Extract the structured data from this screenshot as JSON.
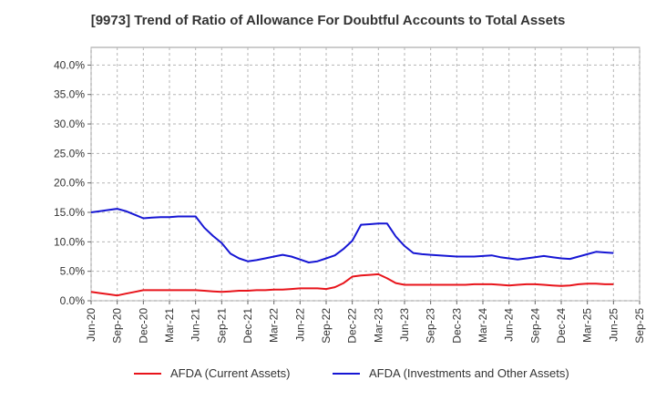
{
  "chart_data": {
    "type": "line",
    "title": "[9973]  Trend of Ratio of Allowance For Doubtful Accounts to Total Assets",
    "xlabel": "",
    "ylabel": "",
    "ylim": [
      0,
      0.43
    ],
    "yticks": [
      0,
      0.05,
      0.1,
      0.15,
      0.2,
      0.25,
      0.3,
      0.35,
      0.4
    ],
    "ytick_labels": [
      "0.0%",
      "5.0%",
      "10.0%",
      "15.0%",
      "20.0%",
      "25.0%",
      "30.0%",
      "35.0%",
      "40.0%"
    ],
    "x_tick_labels": [
      "Jun-20",
      "Sep-20",
      "Dec-20",
      "Mar-21",
      "Jun-21",
      "Sep-21",
      "Dec-21",
      "Mar-22",
      "Jun-22",
      "Sep-22",
      "Dec-22",
      "Mar-23",
      "Jun-23",
      "Sep-23",
      "Dec-23",
      "Mar-24",
      "Jun-24",
      "Sep-24",
      "Dec-24",
      "Mar-25",
      "Jun-25",
      "Sep-25"
    ],
    "x": [
      "Jun-20",
      "Jul-20",
      "Aug-20",
      "Sep-20",
      "Oct-20",
      "Nov-20",
      "Dec-20",
      "Jan-21",
      "Feb-21",
      "Mar-21",
      "Apr-21",
      "May-21",
      "Jun-21",
      "Jul-21",
      "Aug-21",
      "Sep-21",
      "Oct-21",
      "Nov-21",
      "Dec-21",
      "Jan-22",
      "Feb-22",
      "Mar-22",
      "Apr-22",
      "May-22",
      "Jun-22",
      "Jul-22",
      "Aug-22",
      "Sep-22",
      "Oct-22",
      "Nov-22",
      "Dec-22",
      "Jan-23",
      "Feb-23",
      "Mar-23",
      "Apr-23",
      "May-23",
      "Jun-23",
      "Jul-23",
      "Aug-23",
      "Sep-23",
      "Oct-23",
      "Nov-23",
      "Dec-23",
      "Jan-24",
      "Feb-24",
      "Mar-24",
      "Apr-24",
      "May-24",
      "Jun-24",
      "Jul-24",
      "Aug-24",
      "Sep-24",
      "Oct-24",
      "Nov-24",
      "Dec-24",
      "Jan-25",
      "Feb-25",
      "Mar-25",
      "Apr-25",
      "May-25",
      "Jun-25"
    ],
    "grid": true,
    "legend_position": "bottom",
    "series": [
      {
        "name": "AFDA (Current Assets)",
        "color": "#e8141b",
        "values": [
          0.015,
          0.013,
          0.011,
          0.009,
          0.012,
          0.015,
          0.018,
          0.018,
          0.018,
          0.018,
          0.018,
          0.018,
          0.018,
          0.017,
          0.016,
          0.015,
          0.016,
          0.017,
          0.017,
          0.018,
          0.018,
          0.019,
          0.019,
          0.02,
          0.021,
          0.021,
          0.021,
          0.02,
          0.023,
          0.03,
          0.041,
          0.043,
          0.044,
          0.045,
          0.038,
          0.03,
          0.027,
          0.027,
          0.027,
          0.027,
          0.027,
          0.027,
          0.027,
          0.027,
          0.028,
          0.028,
          0.028,
          0.027,
          0.026,
          0.027,
          0.028,
          0.028,
          0.027,
          0.026,
          0.025,
          0.026,
          0.028,
          0.029,
          0.029,
          0.028,
          0.028
        ]
      },
      {
        "name": "AFDA (Investments and Other Assets)",
        "color": "#1616d4",
        "values": [
          0.15,
          0.152,
          0.154,
          0.156,
          0.152,
          0.146,
          0.14,
          0.141,
          0.142,
          0.142,
          0.143,
          0.143,
          0.143,
          0.124,
          0.11,
          0.098,
          0.08,
          0.072,
          0.067,
          0.069,
          0.072,
          0.075,
          0.078,
          0.075,
          0.07,
          0.065,
          0.067,
          0.072,
          0.077,
          0.088,
          0.102,
          0.129,
          0.13,
          0.131,
          0.131,
          0.109,
          0.093,
          0.081,
          0.079,
          0.078,
          0.077,
          0.076,
          0.075,
          0.075,
          0.075,
          0.076,
          0.077,
          0.074,
          0.072,
          0.07,
          0.072,
          0.074,
          0.076,
          0.074,
          0.072,
          0.071,
          0.075,
          0.079,
          0.083,
          0.082,
          0.081
        ]
      }
    ]
  }
}
